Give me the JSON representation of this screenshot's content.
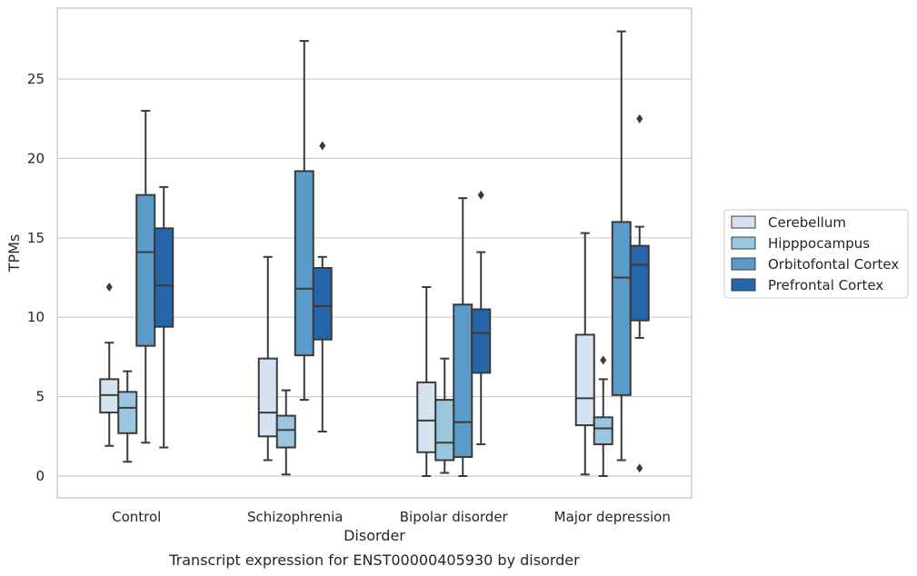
{
  "chart_data": {
    "type": "box",
    "title": "",
    "caption": "Transcript expression for ENST00000405930 by disorder",
    "xlabel": "Disorder",
    "ylabel": "TPMs",
    "ylim": [
      -1.3,
      29.2
    ],
    "yticks": [
      0,
      5,
      10,
      15,
      20,
      25
    ],
    "grid": "horizontal",
    "legend_position": "right",
    "categories": [
      "Control",
      "Schizophrenia",
      "Bipolar disorder",
      "Major depression"
    ],
    "series": [
      {
        "name": "Cerebellum",
        "color": "#d4e2f1",
        "boxes": [
          {
            "whisker_low": 1.9,
            "q1": 4.0,
            "median": 5.1,
            "q3": 6.1,
            "whisker_high": 8.4,
            "outliers": [
              11.9
            ]
          },
          {
            "whisker_low": 1.0,
            "q1": 2.5,
            "median": 4.0,
            "q3": 7.4,
            "whisker_high": 13.8,
            "outliers": []
          },
          {
            "whisker_low": 0.0,
            "q1": 1.5,
            "median": 3.5,
            "q3": 5.9,
            "whisker_high": 11.9,
            "outliers": []
          },
          {
            "whisker_low": 0.1,
            "q1": 3.2,
            "median": 4.9,
            "q3": 8.9,
            "whisker_high": 15.3,
            "outliers": []
          }
        ]
      },
      {
        "name": "Hipppocampus",
        "color": "#9ac7e0",
        "boxes": [
          {
            "whisker_low": 0.9,
            "q1": 2.7,
            "median": 4.3,
            "q3": 5.3,
            "whisker_high": 6.6,
            "outliers": []
          },
          {
            "whisker_low": 0.1,
            "q1": 1.8,
            "median": 2.9,
            "q3": 3.8,
            "whisker_high": 5.4,
            "outliers": []
          },
          {
            "whisker_low": 0.2,
            "q1": 1.0,
            "median": 2.1,
            "q3": 4.8,
            "whisker_high": 7.4,
            "outliers": []
          },
          {
            "whisker_low": 0.0,
            "q1": 2.0,
            "median": 3.0,
            "q3": 3.7,
            "whisker_high": 6.1,
            "outliers": [
              7.3
            ]
          }
        ]
      },
      {
        "name": "Orbitofontal Cortex",
        "color": "#5a9bc9",
        "boxes": [
          {
            "whisker_low": 2.1,
            "q1": 8.2,
            "median": 14.1,
            "q3": 17.7,
            "whisker_high": 23.0,
            "outliers": []
          },
          {
            "whisker_low": 4.8,
            "q1": 7.6,
            "median": 11.8,
            "q3": 19.2,
            "whisker_high": 27.4,
            "outliers": []
          },
          {
            "whisker_low": 0.0,
            "q1": 1.2,
            "median": 3.4,
            "q3": 10.8,
            "whisker_high": 17.5,
            "outliers": []
          },
          {
            "whisker_low": 1.0,
            "q1": 5.1,
            "median": 12.5,
            "q3": 16.0,
            "whisker_high": 28.0,
            "outliers": []
          }
        ]
      },
      {
        "name": "Prefrontal Cortex",
        "color": "#2666a8",
        "boxes": [
          {
            "whisker_low": 1.8,
            "q1": 9.4,
            "median": 12.0,
            "q3": 15.6,
            "whisker_high": 18.2,
            "outliers": []
          },
          {
            "whisker_low": 2.8,
            "q1": 8.6,
            "median": 10.7,
            "q3": 13.1,
            "whisker_high": 13.8,
            "outliers": [
              20.8
            ]
          },
          {
            "whisker_low": 2.0,
            "q1": 6.5,
            "median": 9.0,
            "q3": 10.5,
            "whisker_high": 14.1,
            "outliers": [
              17.7
            ]
          },
          {
            "whisker_low": 8.7,
            "q1": 9.8,
            "median": 13.3,
            "q3": 14.5,
            "whisker_high": 15.7,
            "outliers": [
              22.5,
              0.5
            ]
          }
        ]
      }
    ]
  }
}
